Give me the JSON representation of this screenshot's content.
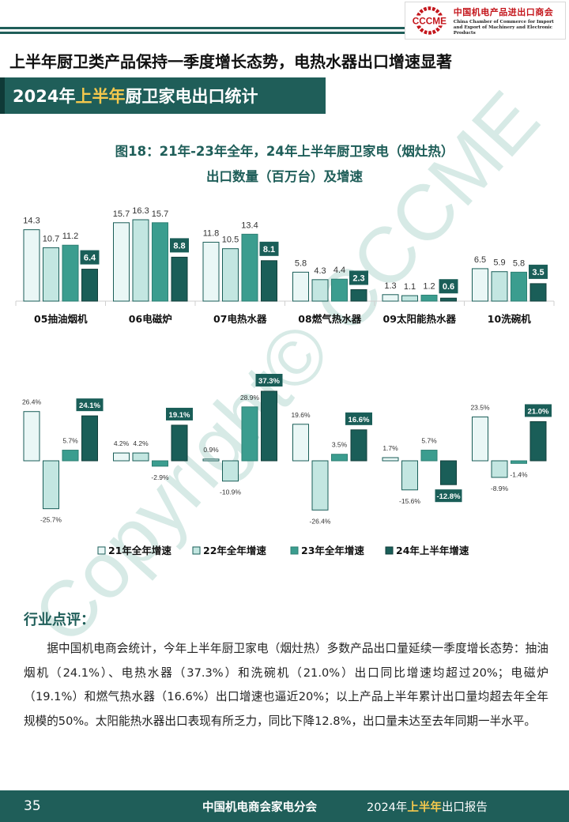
{
  "header": {
    "logo_abbr": "CCCME",
    "logo_cn": "中国机电产品进出口商会",
    "logo_en_line1": "China Chamber of Commerce for Import",
    "logo_en_line2": "and Export of Machinery and Electronic Products"
  },
  "main_title": "上半年厨卫类产品保持一季度增长态势，电热水器出口增速显著",
  "section": {
    "prefix": "2024年",
    "highlight": "上半年",
    "suffix": "厨卫家电出口统计"
  },
  "figure": {
    "title_line1": "图18：21年-23年全年，24年上半年厨卫家电（烟灶热）",
    "title_line2": "出口数量（百万台）及增速"
  },
  "chart_data": [
    {
      "type": "bar",
      "title": "",
      "unit": "百万台",
      "categories": [
        "05抽油烟机",
        "06电磁炉",
        "07电热水器",
        "08燃气热水器",
        "09太阳能热水器",
        "10洗碗机"
      ],
      "series": [
        {
          "name": "21年全年增速",
          "values": [
            14.3,
            15.7,
            11.8,
            5.8,
            1.3,
            6.5
          ]
        },
        {
          "name": "22年全年增速",
          "values": [
            10.7,
            16.3,
            10.5,
            4.3,
            1.1,
            5.9
          ]
        },
        {
          "name": "23年全年增速",
          "values": [
            11.2,
            15.7,
            13.4,
            4.4,
            1.2,
            5.8
          ]
        },
        {
          "name": "24年上半年增速",
          "values": [
            6.4,
            8.8,
            8.1,
            2.3,
            0.6,
            3.5
          ]
        }
      ],
      "ylim": [
        0,
        16.3
      ]
    },
    {
      "type": "bar",
      "title": "",
      "unit": "%",
      "categories": [
        "05抽油烟机",
        "06电磁炉",
        "07电热水器",
        "08燃气热水器",
        "09太阳能热水器",
        "10洗碗机"
      ],
      "series": [
        {
          "name": "21年全年增速",
          "values": [
            26.4,
            4.2,
            0.9,
            19.6,
            1.7,
            23.5
          ]
        },
        {
          "name": "22年全年增速",
          "values": [
            -25.7,
            4.2,
            -10.9,
            -26.4,
            -15.6,
            -8.9
          ]
        },
        {
          "name": "23年全年增速",
          "values": [
            5.7,
            -2.9,
            28.9,
            3.5,
            5.7,
            -1.4
          ]
        },
        {
          "name": "24年上半年增速",
          "values": [
            24.1,
            19.1,
            37.3,
            16.6,
            -12.8,
            21.0
          ]
        }
      ],
      "legend_position": "bottom",
      "ylim": [
        -26.4,
        37.3
      ]
    }
  ],
  "colors": {
    "s1": "#eaf7f6",
    "s2": "#c3e6e1",
    "s3": "#3b9d8f",
    "s4": "#1a5e58",
    "label_box": "#1a5e58",
    "brand": "#1f5e59",
    "accent": "#f4c84d"
  },
  "comment": {
    "title": "行业点评：",
    "body": "据中国机电商会统计，今年上半年厨卫家电（烟灶热）多数产品出口量延续一季度增长态势：抽油烟机（24.1%）、电热水器（37.3%）和洗碗机（21.0%）出口同比增速均超过20%；电磁炉（19.1%）和燃气热水器（16.6%）出口增速也逼近20%；以上产品上半年累计出口量均超去年全年规模的50%。太阳能热水器出口表现有所乏力，同比下降12.8%，出口量未达至去年同期一半水平。"
  },
  "footer": {
    "page": "35",
    "org": "中国机电商会家电分会",
    "report_prefix": "2024年",
    "report_highlight": "上半年",
    "report_suffix": "出口报告"
  },
  "watermark": "Copyright© CCCME"
}
